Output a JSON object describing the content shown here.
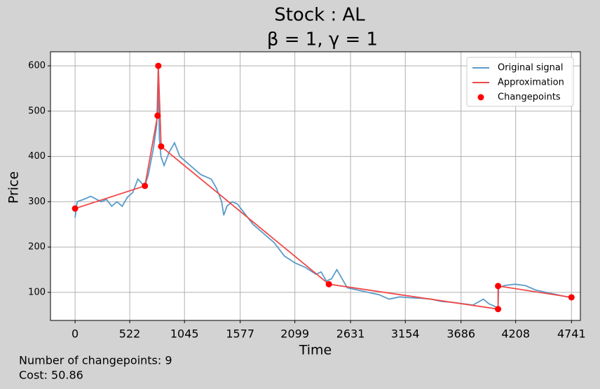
{
  "chart_data": {
    "type": "line",
    "title": "Stock : AL",
    "subtitle": "β = 1, γ = 1",
    "x_label": "Time",
    "y_label": "Price",
    "annotations": [
      "Number of changepoints: 9",
      "Cost: 50.86"
    ],
    "xlim": [
      -235,
      4826
    ],
    "ylim": [
      38,
      631
    ],
    "xticks": [
      0,
      522,
      1045,
      1577,
      2099,
      2631,
      3154,
      3686,
      4208,
      4741
    ],
    "yticks": [
      100,
      200,
      300,
      400,
      500,
      600
    ],
    "grid": true,
    "legend": "upper right",
    "series": [
      {
        "name": "Original signal",
        "type": "line",
        "color": "#5a9bc9",
        "x": [
          0,
          20,
          80,
          150,
          250,
          300,
          350,
          400,
          450,
          500,
          550,
          600,
          640,
          667,
          700,
          750,
          780,
          795,
          805,
          820,
          850,
          900,
          950,
          1000,
          1050,
          1100,
          1200,
          1300,
          1350,
          1400,
          1420,
          1450,
          1500,
          1550,
          1600,
          1700,
          1800,
          1900,
          2000,
          2100,
          2200,
          2300,
          2350,
          2400,
          2450,
          2500,
          2550,
          2600,
          2700,
          2800,
          2900,
          3000,
          3100,
          3200,
          3300,
          3400,
          3500,
          3600,
          3700,
          3800,
          3900,
          3950,
          4000,
          4040,
          4045,
          4100,
          4200,
          4300,
          4400,
          4500,
          4600,
          4700,
          4741
        ],
        "values": [
          265,
          300,
          305,
          312,
          300,
          305,
          290,
          300,
          290,
          310,
          320,
          350,
          340,
          335,
          360,
          420,
          470,
          600,
          440,
          400,
          380,
          410,
          430,
          400,
          390,
          380,
          360,
          350,
          330,
          300,
          270,
          290,
          300,
          295,
          280,
          250,
          230,
          210,
          180,
          165,
          155,
          140,
          145,
          125,
          130,
          150,
          130,
          110,
          105,
          100,
          95,
          85,
          90,
          88,
          87,
          85,
          80,
          78,
          75,
          72,
          85,
          75,
          70,
          65,
          110,
          115,
          118,
          115,
          105,
          100,
          95,
          90,
          89
        ]
      },
      {
        "name": "Approximation",
        "type": "line",
        "color": "#f04848",
        "x": [
          0,
          667,
          788,
          795,
          822,
          2424,
          4040,
          4040,
          4741
        ],
        "values": [
          285,
          335,
          490,
          600,
          422,
          118,
          63,
          114,
          89
        ]
      },
      {
        "name": "Changepoints",
        "type": "scatter",
        "color": "#ff0000",
        "x": [
          0,
          667,
          788,
          795,
          822,
          2424,
          4040,
          4040,
          4741
        ],
        "values": [
          285,
          335,
          490,
          600,
          422,
          118,
          63,
          114,
          89
        ]
      }
    ]
  }
}
